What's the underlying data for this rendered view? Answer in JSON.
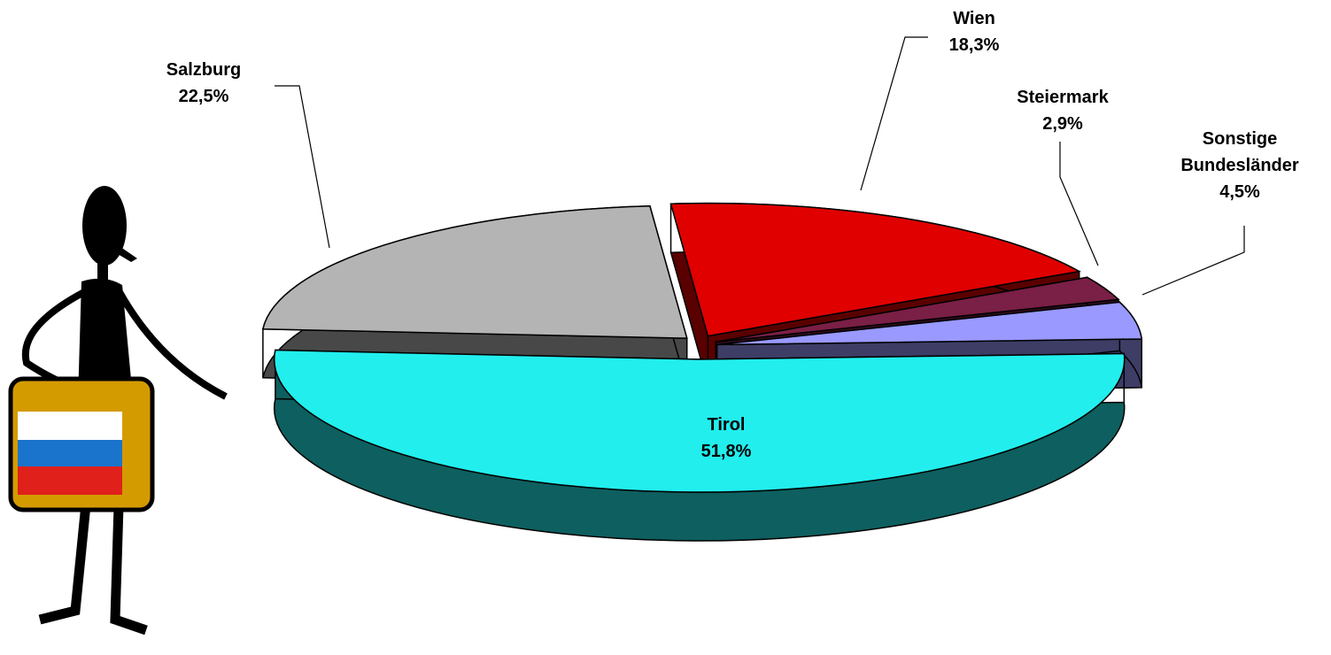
{
  "chart_data": {
    "type": "pie3d",
    "categories": [
      "Wien",
      "Steiermark",
      "Sonstige Bundesländer",
      "Tirol",
      "Salzburg"
    ],
    "values": [
      18.3,
      2.9,
      4.5,
      51.8,
      22.5
    ],
    "value_labels": [
      "18,3%",
      "2,9%",
      "4,5%",
      "51,8%",
      "22,5%"
    ],
    "colors": [
      "#e00000",
      "#7a1f45",
      "#9999ff",
      "#22eeee",
      "#b4b4b4"
    ]
  }
}
